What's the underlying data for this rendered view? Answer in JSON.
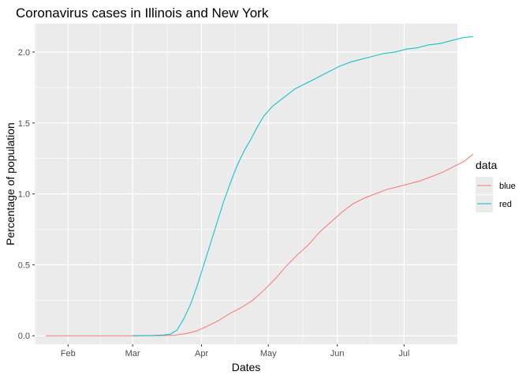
{
  "chart_data": {
    "type": "line",
    "title": "Coronavirus cases in Illinois and New York",
    "xlabel": "Dates",
    "ylabel": "Percentage of population",
    "x_axis": {
      "kind": "date",
      "range": [
        "2020-01-17",
        "2020-07-25"
      ],
      "ticks": [
        {
          "date": "2020-02-01",
          "label": "Feb"
        },
        {
          "date": "2020-03-01",
          "label": "Mar"
        },
        {
          "date": "2020-04-01",
          "label": "Apr"
        },
        {
          "date": "2020-05-01",
          "label": "May"
        },
        {
          "date": "2020-06-01",
          "label": "Jun"
        },
        {
          "date": "2020-07-01",
          "label": "Jul"
        }
      ]
    },
    "y_axis": {
      "range": [
        -0.06,
        2.2
      ],
      "ticks": [
        0.0,
        0.5,
        1.0,
        1.5,
        2.0
      ],
      "tick_labels": [
        "0.0",
        "0.5",
        "1.0",
        "1.5",
        "2.0"
      ]
    },
    "grid": true,
    "legend": {
      "title": "data",
      "placement": "right"
    },
    "series": [
      {
        "name": "blue",
        "color": "#F8766D",
        "points": [
          [
            "2020-01-22",
            0.0
          ],
          [
            "2020-02-15",
            0.0
          ],
          [
            "2020-03-01",
            0.0
          ],
          [
            "2020-03-10",
            0.0005
          ],
          [
            "2020-03-15",
            0.001
          ],
          [
            "2020-03-20",
            0.004
          ],
          [
            "2020-03-25",
            0.015
          ],
          [
            "2020-03-30",
            0.035
          ],
          [
            "2020-04-04",
            0.07
          ],
          [
            "2020-04-09",
            0.11
          ],
          [
            "2020-04-14",
            0.16
          ],
          [
            "2020-04-19",
            0.2
          ],
          [
            "2020-04-24",
            0.25
          ],
          [
            "2020-04-29",
            0.32
          ],
          [
            "2020-05-04",
            0.4
          ],
          [
            "2020-05-09",
            0.49
          ],
          [
            "2020-05-14",
            0.57
          ],
          [
            "2020-05-19",
            0.64
          ],
          [
            "2020-05-24",
            0.73
          ],
          [
            "2020-05-29",
            0.8
          ],
          [
            "2020-06-03",
            0.87
          ],
          [
            "2020-06-08",
            0.93
          ],
          [
            "2020-06-13",
            0.97
          ],
          [
            "2020-06-18",
            1.0
          ],
          [
            "2020-06-23",
            1.03
          ],
          [
            "2020-06-28",
            1.05
          ],
          [
            "2020-07-03",
            1.07
          ],
          [
            "2020-07-08",
            1.09
          ],
          [
            "2020-07-13",
            1.12
          ],
          [
            "2020-07-18",
            1.15
          ],
          [
            "2020-07-23",
            1.19
          ],
          [
            "2020-07-28",
            1.23
          ],
          [
            "2020-08-01",
            1.28
          ]
        ]
      },
      {
        "name": "red",
        "color": "#00BFC4",
        "points": [
          [
            "2020-03-01",
            0.0
          ],
          [
            "2020-03-10",
            0.002
          ],
          [
            "2020-03-15",
            0.005
          ],
          [
            "2020-03-18",
            0.012
          ],
          [
            "2020-03-21",
            0.04
          ],
          [
            "2020-03-24",
            0.12
          ],
          [
            "2020-03-27",
            0.22
          ],
          [
            "2020-03-30",
            0.35
          ],
          [
            "2020-04-02",
            0.5
          ],
          [
            "2020-04-05",
            0.65
          ],
          [
            "2020-04-08",
            0.8
          ],
          [
            "2020-04-11",
            0.95
          ],
          [
            "2020-04-14",
            1.08
          ],
          [
            "2020-04-17",
            1.2
          ],
          [
            "2020-04-20",
            1.3
          ],
          [
            "2020-04-23",
            1.38
          ],
          [
            "2020-04-26",
            1.47
          ],
          [
            "2020-04-29",
            1.55
          ],
          [
            "2020-05-03",
            1.62
          ],
          [
            "2020-05-08",
            1.68
          ],
          [
            "2020-05-13",
            1.74
          ],
          [
            "2020-05-18",
            1.78
          ],
          [
            "2020-05-23",
            1.82
          ],
          [
            "2020-05-28",
            1.86
          ],
          [
            "2020-06-02",
            1.9
          ],
          [
            "2020-06-07",
            1.93
          ],
          [
            "2020-06-12",
            1.95
          ],
          [
            "2020-06-17",
            1.97
          ],
          [
            "2020-06-22",
            1.99
          ],
          [
            "2020-06-27",
            2.0
          ],
          [
            "2020-07-02",
            2.02
          ],
          [
            "2020-07-07",
            2.03
          ],
          [
            "2020-07-12",
            2.05
          ],
          [
            "2020-07-17",
            2.06
          ],
          [
            "2020-07-22",
            2.08
          ],
          [
            "2020-07-27",
            2.1
          ],
          [
            "2020-08-01",
            2.11
          ]
        ]
      }
    ]
  },
  "panel": {
    "background": "#EBEBEB",
    "grid_color": "#FFFFFF"
  }
}
